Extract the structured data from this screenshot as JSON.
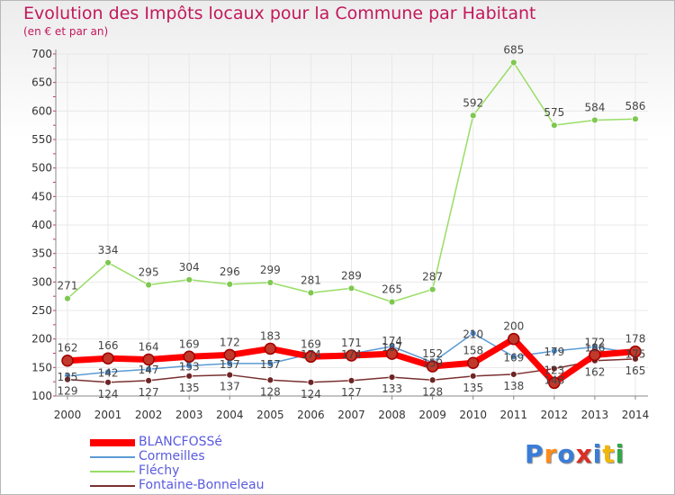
{
  "header": {
    "title": "Evolution des Impôts locaux pour la Commune par Habitant",
    "subtitle": "(en € et par an)"
  },
  "logo": {
    "text": "Proxiti",
    "colors": [
      "#3a7dd8",
      "#ff8c1a",
      "#3a7dd8",
      "#d93025",
      "#3a7dd8",
      "#f2b705",
      "#2eaa46"
    ]
  },
  "colors": {
    "title": "#c2185b",
    "legend_text": "#5a5adf",
    "grid": "#e8e8e8",
    "axis": "#888888",
    "tick_label": "#333333",
    "data_label": "#444444"
  },
  "chart_data": {
    "type": "line",
    "title": "Evolution des Impôts locaux pour la Commune par Habitant",
    "subtitle": "(en € et par an)",
    "xlabel": "",
    "ylabel": "",
    "ylim": [
      100,
      700
    ],
    "yticks": [
      "100",
      "150",
      "200",
      "250",
      "300",
      "350",
      "400",
      "450",
      "500",
      "550",
      "600",
      "650",
      "700"
    ],
    "categories": [
      "2000",
      "2001",
      "2002",
      "2003",
      "2004",
      "2005",
      "2006",
      "2007",
      "2008",
      "2009",
      "2010",
      "2011",
      "2012",
      "2013",
      "2014"
    ],
    "grid": true,
    "legend_position": "bottom-left",
    "series": [
      {
        "name": "BLANCFOSSé",
        "color": "#ff0000",
        "marker": "#c0392b",
        "thick": true,
        "values": [
          162,
          166,
          164,
          169,
          172,
          183,
          169,
          171,
          174,
          152,
          158,
          200,
          123,
          172,
          178
        ],
        "labels": [
          "162",
          "166",
          "164",
          "169",
          "172",
          "183",
          "169",
          "171",
          "174",
          "152",
          "158",
          "200",
          "123",
          "172",
          "178"
        ]
      },
      {
        "name": "Cormeilles",
        "color": "#5b9bd5",
        "marker": "#4a86c5",
        "thick": false,
        "values": [
          135,
          142,
          147,
          153,
          157,
          157,
          174,
          174,
          187,
          159,
          210,
          169,
          179,
          186,
          175
        ],
        "labels": [
          "135",
          "142",
          "147",
          "153",
          "157",
          "157",
          "174",
          "174",
          "187",
          "159",
          "210",
          "169",
          "179",
          "186",
          "175"
        ]
      },
      {
        "name": "Fléchy",
        "color": "#99dd66",
        "marker": "#7ec850",
        "thick": false,
        "values": [
          271,
          334,
          295,
          304,
          296,
          299,
          281,
          289,
          265,
          287,
          592,
          685,
          575,
          584,
          586
        ],
        "labels": [
          "271",
          "334",
          "295",
          "304",
          "296",
          "299",
          "281",
          "289",
          "265",
          "287",
          "592",
          "685",
          "575",
          "584",
          "586"
        ]
      },
      {
        "name": "Fontaine-Bonneleau",
        "color": "#7a3030",
        "marker": "#6e2424",
        "thick": false,
        "values": [
          129,
          124,
          127,
          135,
          137,
          128,
          124,
          127,
          133,
          128,
          135,
          138,
          148,
          162,
          165
        ],
        "labels": [
          "129",
          "124",
          "127",
          "135",
          "137",
          "128",
          "124",
          "127",
          "133",
          "128",
          "135",
          "138",
          "148",
          "162",
          "165"
        ]
      }
    ]
  }
}
